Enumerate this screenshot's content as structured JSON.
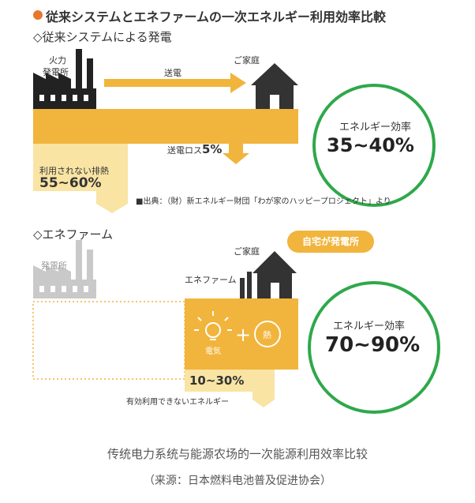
{
  "main_title": "従来システムとエネファームの一次エネルギー利用効率比較",
  "section1": {
    "heading": "◇従来システムによる発電",
    "plant_label_1": "火力",
    "plant_label_2": "発電所",
    "transmission_label": "送電",
    "home_label": "ご家庭",
    "loss_label": "送電ロス",
    "loss_value": "5%",
    "waste_label": "利用されない排熱",
    "waste_value": "55~60%",
    "efficiency_label": "エネルギー効率",
    "efficiency_value": "35~40%",
    "source": "■出典：（財）新エネルギー財団「わが家のハッピープロジェクト」より"
  },
  "section2": {
    "heading": "◇エネファーム",
    "plant_label": "発電所",
    "home_label": "ご家庭",
    "device_label": "エネファーム",
    "callout": "自宅が発電所",
    "electricity_label": "電気",
    "heat_label": "熱",
    "plus": "+",
    "unused_value": "10~30%",
    "unused_label": "有効利用できないエネルギー",
    "efficiency_label": "エネルギー効率",
    "efficiency_value": "70~90%"
  },
  "caption": "传统电力系统与能源农场的一次能源利用效率比较",
  "source_note": "（来源：日本燃料电池普及促进协会）",
  "colors": {
    "accent": "#e8772e",
    "flow": "#f1b43c",
    "flow_pale": "#f9e4a4",
    "ring": "#2fa84a"
  }
}
